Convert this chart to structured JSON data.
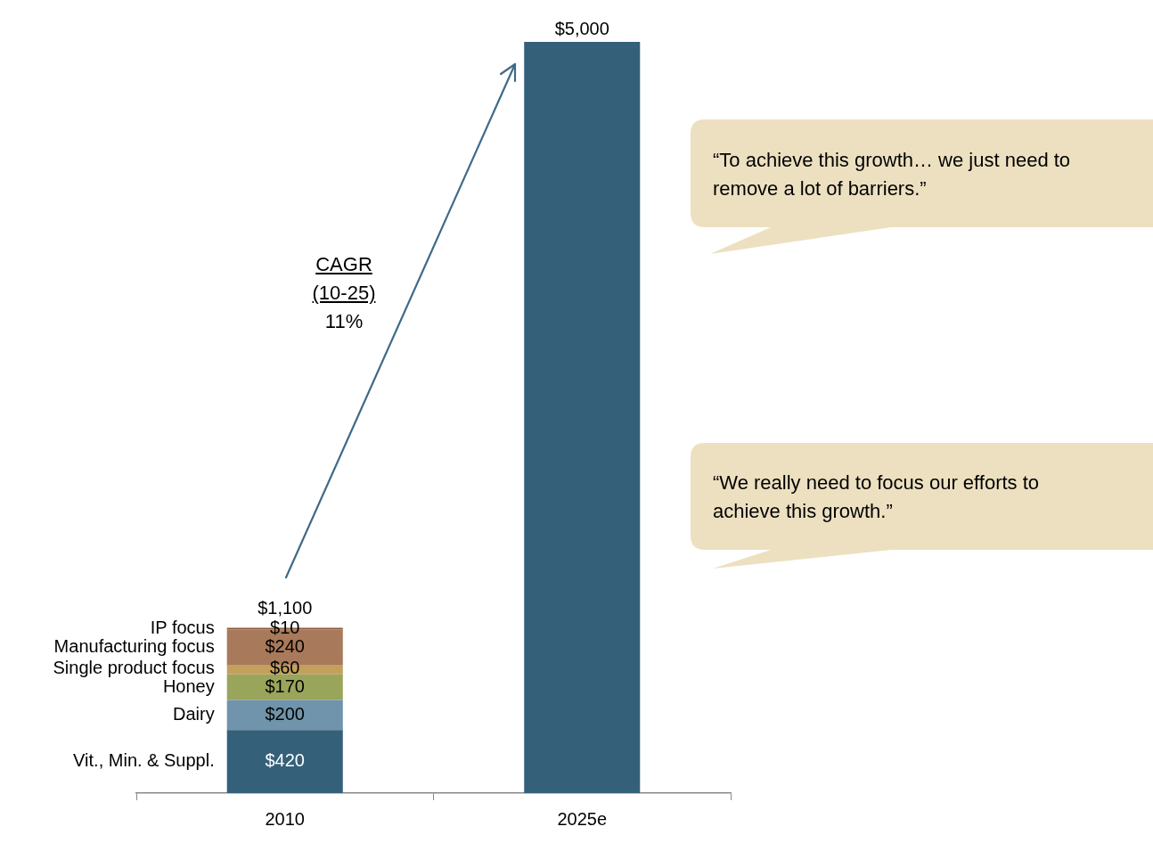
{
  "chart_data": {
    "type": "bar",
    "stacked": true,
    "categories": [
      "2010",
      "2025e"
    ],
    "series": [
      {
        "name": "Vit., Min. & Suppl.",
        "color": "#35607a",
        "values": [
          420,
          null
        ],
        "value_labels": [
          "$420",
          null
        ]
      },
      {
        "name": "Dairy",
        "color": "#6f94ab",
        "values": [
          200,
          null
        ],
        "value_labels": [
          "$200",
          null
        ]
      },
      {
        "name": "Honey",
        "color": "#9aa55c",
        "values": [
          170,
          null
        ],
        "value_labels": [
          "$170",
          null
        ]
      },
      {
        "name": "Single product focus",
        "color": "#c3a15c",
        "values": [
          60,
          null
        ],
        "value_labels": [
          "$60",
          null
        ]
      },
      {
        "name": "Manufacturing focus",
        "color": "#a8795a",
        "values": [
          240,
          null
        ],
        "value_labels": [
          "$240",
          null
        ]
      },
      {
        "name": "IP focus",
        "color": "#8e5a3e",
        "values": [
          10,
          null
        ],
        "value_labels": [
          "$10",
          null
        ]
      },
      {
        "color": "#35607a",
        "values": [
          null,
          5000
        ]
      }
    ],
    "totals": [
      "$1,100",
      "$5,000"
    ],
    "ylim": [
      0,
      5000
    ],
    "tick_labels": "x",
    "grid": false,
    "legend": false,
    "annotations": [
      "CAGR",
      "(10-25)",
      "11%",
      "“To achieve this growth… we just need to remove a lot of barriers.”",
      "“We really need to focus our efforts to achieve this growth.”"
    ]
  }
}
